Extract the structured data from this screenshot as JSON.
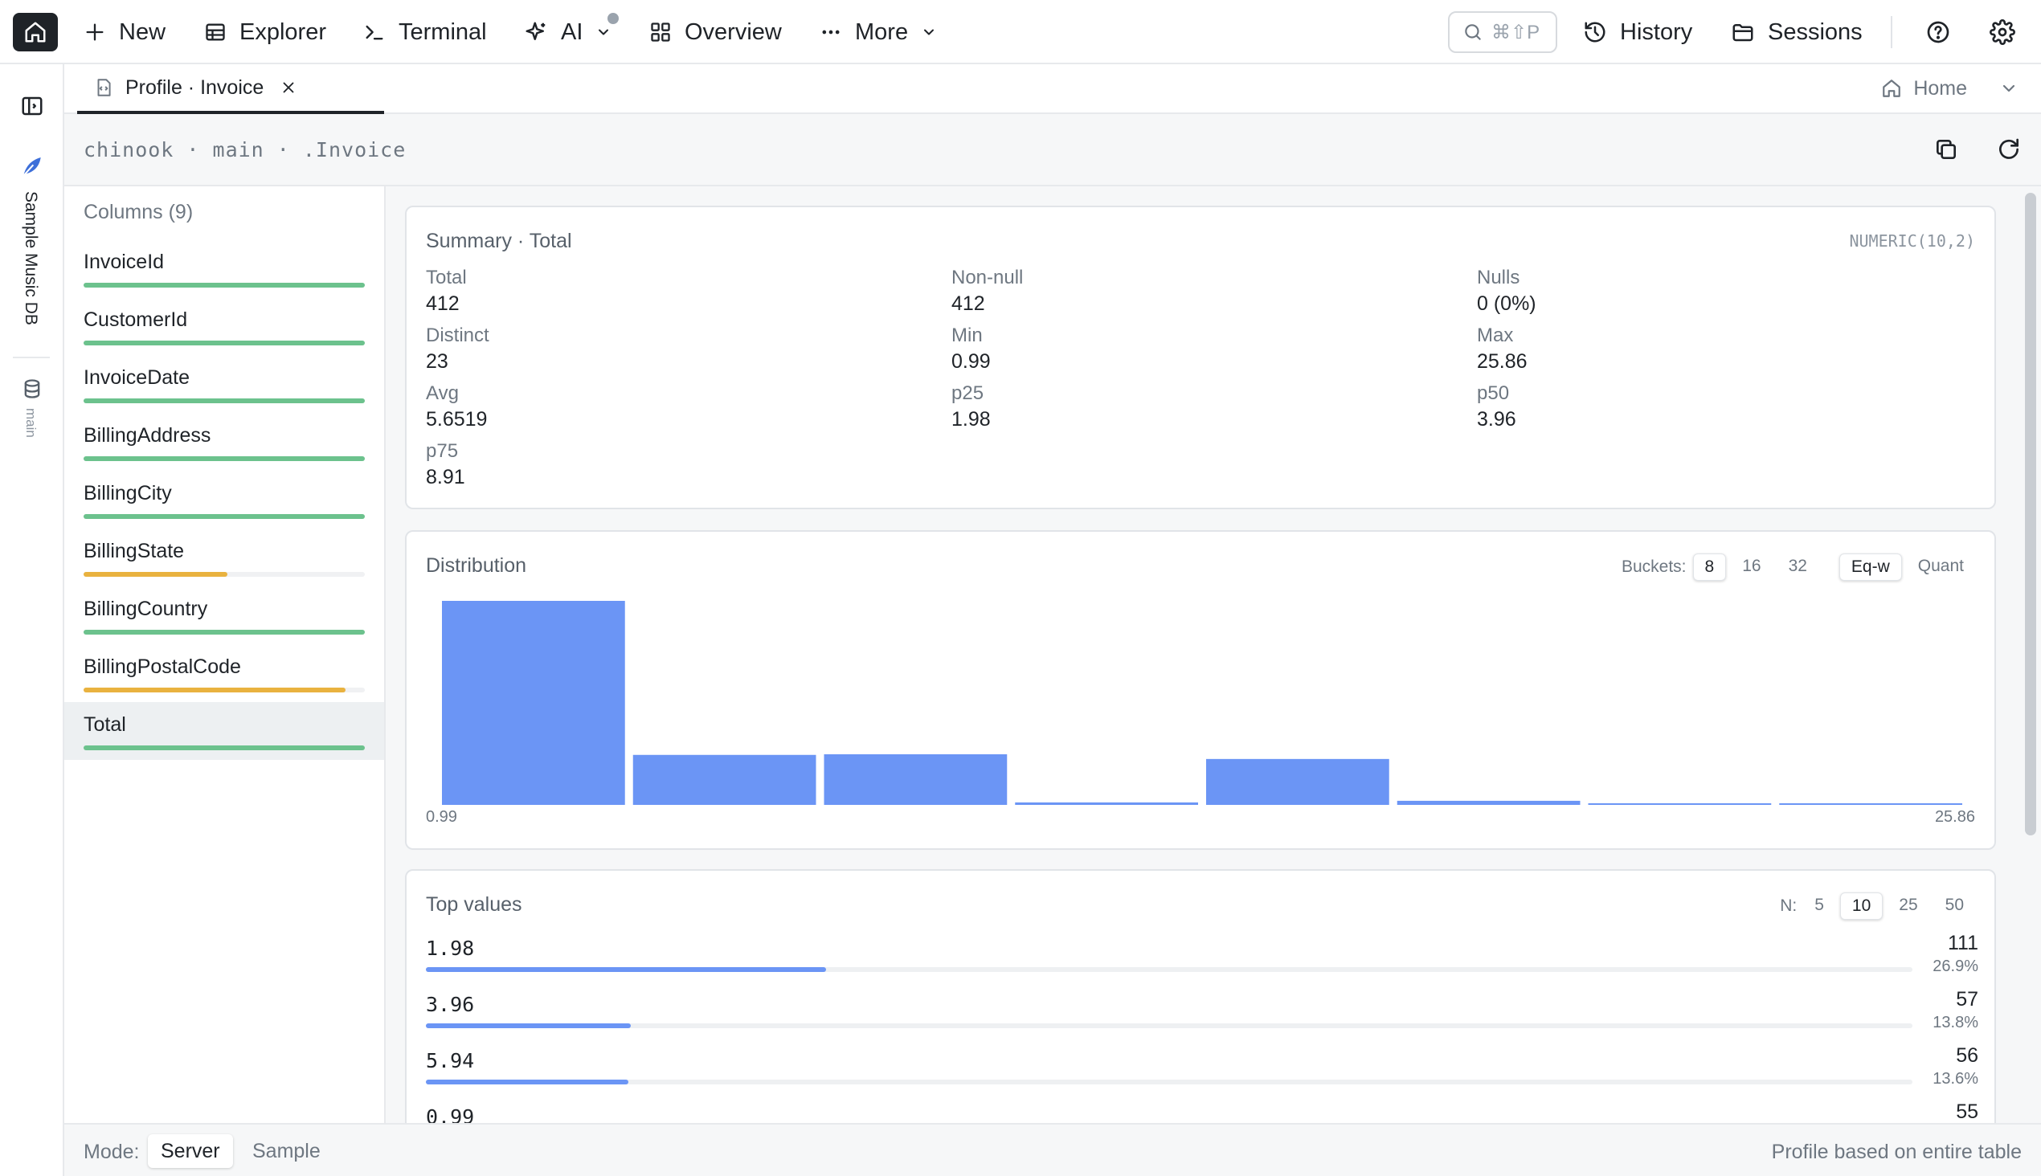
{
  "toolbar": {
    "new_label": "New",
    "explorer_label": "Explorer",
    "terminal_label": "Terminal",
    "ai_label": "AI",
    "overview_label": "Overview",
    "more_label": "More",
    "search_shortcut": "⌘⇧P",
    "history_label": "History",
    "sessions_label": "Sessions"
  },
  "rail": {
    "database_name": "Sample Music DB",
    "schema_name": "main"
  },
  "tabs": {
    "active_tab_label": "Profile · Invoice",
    "home_label": "Home"
  },
  "breadcrumb": "chinook · main · .Invoice",
  "columns_panel": {
    "header": "Columns (9)",
    "items": [
      {
        "name": "InvoiceId",
        "fill": 1.0,
        "color": "#6cc28d"
      },
      {
        "name": "CustomerId",
        "fill": 1.0,
        "color": "#6cc28d"
      },
      {
        "name": "InvoiceDate",
        "fill": 1.0,
        "color": "#6cc28d"
      },
      {
        "name": "BillingAddress",
        "fill": 1.0,
        "color": "#6cc28d"
      },
      {
        "name": "BillingCity",
        "fill": 1.0,
        "color": "#6cc28d"
      },
      {
        "name": "BillingState",
        "fill": 0.51,
        "color": "#e9b23f"
      },
      {
        "name": "BillingCountry",
        "fill": 1.0,
        "color": "#6cc28d"
      },
      {
        "name": "BillingPostalCode",
        "fill": 0.93,
        "color": "#e9b23f"
      },
      {
        "name": "Total",
        "fill": 1.0,
        "color": "#6cc28d",
        "selected": true
      }
    ]
  },
  "summary": {
    "title": "Summary · Total",
    "type": "NUMERIC(10,2)",
    "stats": [
      {
        "label": "Total",
        "value": "412"
      },
      {
        "label": "Non-null",
        "value": "412"
      },
      {
        "label": "Nulls",
        "value": "0 (0%)"
      },
      {
        "label": "Distinct",
        "value": "23"
      },
      {
        "label": "Min",
        "value": "0.99"
      },
      {
        "label": "Max",
        "value": "25.86"
      },
      {
        "label": "Avg",
        "value": "5.6519"
      },
      {
        "label": "p25",
        "value": "1.98"
      },
      {
        "label": "p50",
        "value": "3.96"
      },
      {
        "label": "p75",
        "value": "8.91"
      }
    ]
  },
  "distribution": {
    "title": "Distribution",
    "buckets_label": "Buckets:",
    "bucket_options": [
      "8",
      "16",
      "32"
    ],
    "active_bucket": "8",
    "mode_options": [
      "Eq-w",
      "Quant"
    ],
    "active_mode": "Eq-w",
    "bar_color": "#6b95f5"
  },
  "chart_data": {
    "type": "bar",
    "title": "Distribution",
    "x_min_label": "0.99",
    "x_max_label": "25.86",
    "bucket_count": 8,
    "values": [
      1.0,
      0.245,
      0.248,
      0.012,
      0.225,
      0.02,
      0.007,
      0.007
    ]
  },
  "top_values": {
    "title": "Top values",
    "n_label": "N:",
    "n_options": [
      "5",
      "10",
      "25",
      "50"
    ],
    "active_n": "10",
    "rows": [
      {
        "value": "1.98",
        "count": "111",
        "pct": "26.9%",
        "fraction": 0.269
      },
      {
        "value": "3.96",
        "count": "57",
        "pct": "13.8%",
        "fraction": 0.138
      },
      {
        "value": "5.94",
        "count": "56",
        "pct": "13.6%",
        "fraction": 0.136
      },
      {
        "value": "0.99",
        "count": "55",
        "pct": "",
        "fraction": 0.133
      }
    ]
  },
  "footer": {
    "mode_label": "Mode:",
    "server_label": "Server",
    "sample_label": "Sample",
    "note": "Profile based on entire table"
  }
}
